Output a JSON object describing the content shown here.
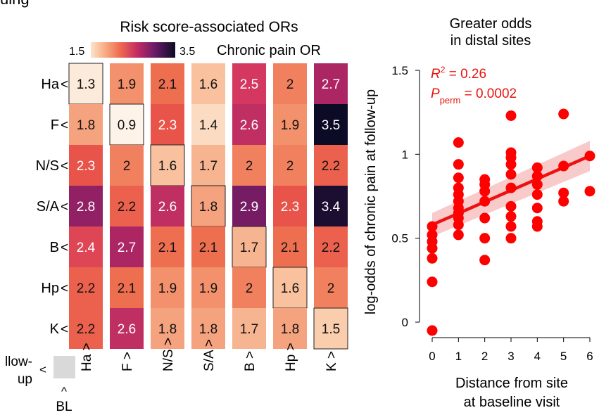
{
  "page_top_fragment": "uing",
  "chart_data": [
    {
      "type": "heatmap",
      "title": "Risk score-associated ORs",
      "colorbar": {
        "min_label": "1.5",
        "max_label": "3.5",
        "min": 1.5,
        "max": 3.5,
        "label": "Chronic pain OR"
      },
      "rows": [
        {
          "label": "Ha",
          "arrow": "<",
          "values": [
            "1.3",
            "1.9",
            "2.1",
            "1.6",
            "2.5",
            "2",
            "2.7"
          ]
        },
        {
          "label": "F",
          "arrow": "<",
          "values": [
            "1.8",
            "0.9",
            "2.3",
            "1.4",
            "2.6",
            "1.9",
            "3.5"
          ]
        },
        {
          "label": "N/S",
          "arrow": "<",
          "values": [
            "2.3",
            "2",
            "1.6",
            "1.7",
            "2",
            "2",
            "2.2"
          ]
        },
        {
          "label": "S/A",
          "arrow": "<",
          "values": [
            "2.8",
            "2.2",
            "2.6",
            "1.8",
            "2.9",
            "2.3",
            "3.4"
          ]
        },
        {
          "label": "B",
          "arrow": "<",
          "values": [
            "2.4",
            "2.7",
            "2.1",
            "2.1",
            "1.7",
            "2.1",
            "2.2"
          ]
        },
        {
          "label": "Hp",
          "arrow": "<",
          "values": [
            "2.2",
            "2.1",
            "1.9",
            "1.9",
            "2",
            "1.6",
            "2"
          ]
        },
        {
          "label": "K",
          "arrow": "<",
          "values": [
            "2.2",
            "2.6",
            "1.8",
            "1.8",
            "1.7",
            "1.8",
            "1.5"
          ]
        }
      ],
      "columns": [
        {
          "label": "Ha",
          "arrow": ">"
        },
        {
          "label": "F",
          "arrow": ">"
        },
        {
          "label": "N/S",
          "arrow": ">"
        },
        {
          "label": "S/A",
          "arrow": ">"
        },
        {
          "label": "B",
          "arrow": ">"
        },
        {
          "label": "Hp",
          "arrow": ">"
        },
        {
          "label": "K",
          "arrow": ">"
        }
      ],
      "legend": {
        "row_label_line1": "llow-",
        "row_label_line2": "up",
        "row_arrow": "<",
        "col_arrow": "^",
        "col_label": "BL",
        "swatch_color": "#d9d9d9"
      },
      "highlight_diagonal": true
    },
    {
      "type": "scatter",
      "title_line1": "Greater odds",
      "title_line2": "in distal sites",
      "xlabel_line1": "Distance from site",
      "xlabel_line2": "at baseline visit",
      "ylabel": "log-odds of chronic pain at follow-up",
      "xlim": [
        0,
        6
      ],
      "ylim": [
        0,
        1.5
      ],
      "xticks": [
        "0",
        "1",
        "2",
        "3",
        "4",
        "5",
        "6"
      ],
      "yticks": [
        "0",
        "0.5",
        "1",
        "1.5"
      ],
      "annotation": {
        "r2_base": "R",
        "r2_sup": "2",
        "r2_value": " = 0.26",
        "p_base": "P",
        "p_sub": "perm",
        "p_value": " = 0.0002"
      },
      "point_color": "#ff0000",
      "points": [
        [
          0,
          -0.05
        ],
        [
          0,
          0.24
        ],
        [
          0,
          0.38
        ],
        [
          0,
          0.44
        ],
        [
          0,
          0.48
        ],
        [
          0,
          0.52
        ],
        [
          0,
          0.57
        ],
        [
          1,
          0.52
        ],
        [
          1,
          0.58
        ],
        [
          1,
          0.62
        ],
        [
          1,
          0.65
        ],
        [
          1,
          0.68
        ],
        [
          1,
          0.72
        ],
        [
          1,
          0.76
        ],
        [
          1,
          0.8
        ],
        [
          1,
          0.86
        ],
        [
          1,
          0.94
        ],
        [
          1,
          1.07
        ],
        [
          2,
          0.37
        ],
        [
          2,
          0.5
        ],
        [
          2,
          0.62
        ],
        [
          2,
          0.72
        ],
        [
          2,
          0.78
        ],
        [
          2,
          0.82
        ],
        [
          2,
          0.85
        ],
        [
          3,
          0.5
        ],
        [
          3,
          0.57
        ],
        [
          3,
          0.63
        ],
        [
          3,
          0.69
        ],
        [
          3,
          0.8
        ],
        [
          3,
          0.88
        ],
        [
          3,
          0.94
        ],
        [
          3,
          0.98
        ],
        [
          3,
          1.01
        ],
        [
          3,
          1.23
        ],
        [
          4,
          0.57
        ],
        [
          4,
          0.6
        ],
        [
          4,
          0.68
        ],
        [
          4,
          0.76
        ],
        [
          4,
          0.82
        ],
        [
          4,
          0.87
        ],
        [
          4,
          0.92
        ],
        [
          5,
          0.72
        ],
        [
          5,
          0.77
        ],
        [
          5,
          0.93
        ],
        [
          5,
          1.24
        ],
        [
          6,
          0.78
        ],
        [
          6,
          0.99
        ]
      ],
      "fit": {
        "x": [
          0,
          6
        ],
        "y": [
          0.58,
          0.99
        ],
        "ci_lower": [
          0.51,
          0.9
        ],
        "ci_upper": [
          0.65,
          1.08
        ]
      }
    }
  ]
}
